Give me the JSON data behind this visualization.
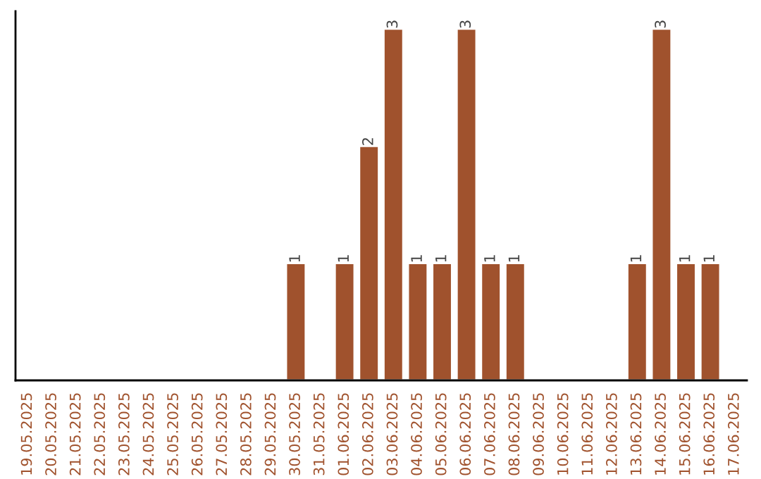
{
  "chart_data": {
    "type": "bar",
    "categories": [
      "19.05.2025",
      "20.05.2025",
      "21.05.2025",
      "22.05.2025",
      "23.05.2025",
      "24.05.2025",
      "25.05.2025",
      "26.05.2025",
      "27.05.2025",
      "28.05.2025",
      "29.05.2025",
      "30.05.2025",
      "31.05.2025",
      "01.06.2025",
      "02.06.2025",
      "03.06.2025",
      "04.06.2025",
      "05.06.2025",
      "06.06.2025",
      "07.06.2025",
      "08.06.2025",
      "09.06.2025",
      "10.06.2025",
      "11.06.2025",
      "12.06.2025",
      "13.06.2025",
      "14.06.2025",
      "15.06.2025",
      "16.06.2025",
      "17.06.2025"
    ],
    "values": [
      null,
      null,
      null,
      null,
      null,
      null,
      null,
      null,
      null,
      null,
      null,
      1,
      null,
      1,
      2,
      3,
      1,
      1,
      3,
      1,
      1,
      null,
      null,
      null,
      null,
      1,
      3,
      1,
      1,
      null
    ],
    "value_labels": [
      null,
      null,
      null,
      null,
      null,
      null,
      null,
      null,
      null,
      null,
      null,
      "1",
      null,
      "1",
      "2",
      "3",
      "1",
      "1",
      "3",
      "1",
      "1",
      null,
      null,
      null,
      null,
      "1",
      "3",
      "1",
      "1",
      null
    ],
    "color": "#a0522d",
    "ylim": [
      0,
      3.15
    ],
    "grid": false,
    "legend": false
  }
}
